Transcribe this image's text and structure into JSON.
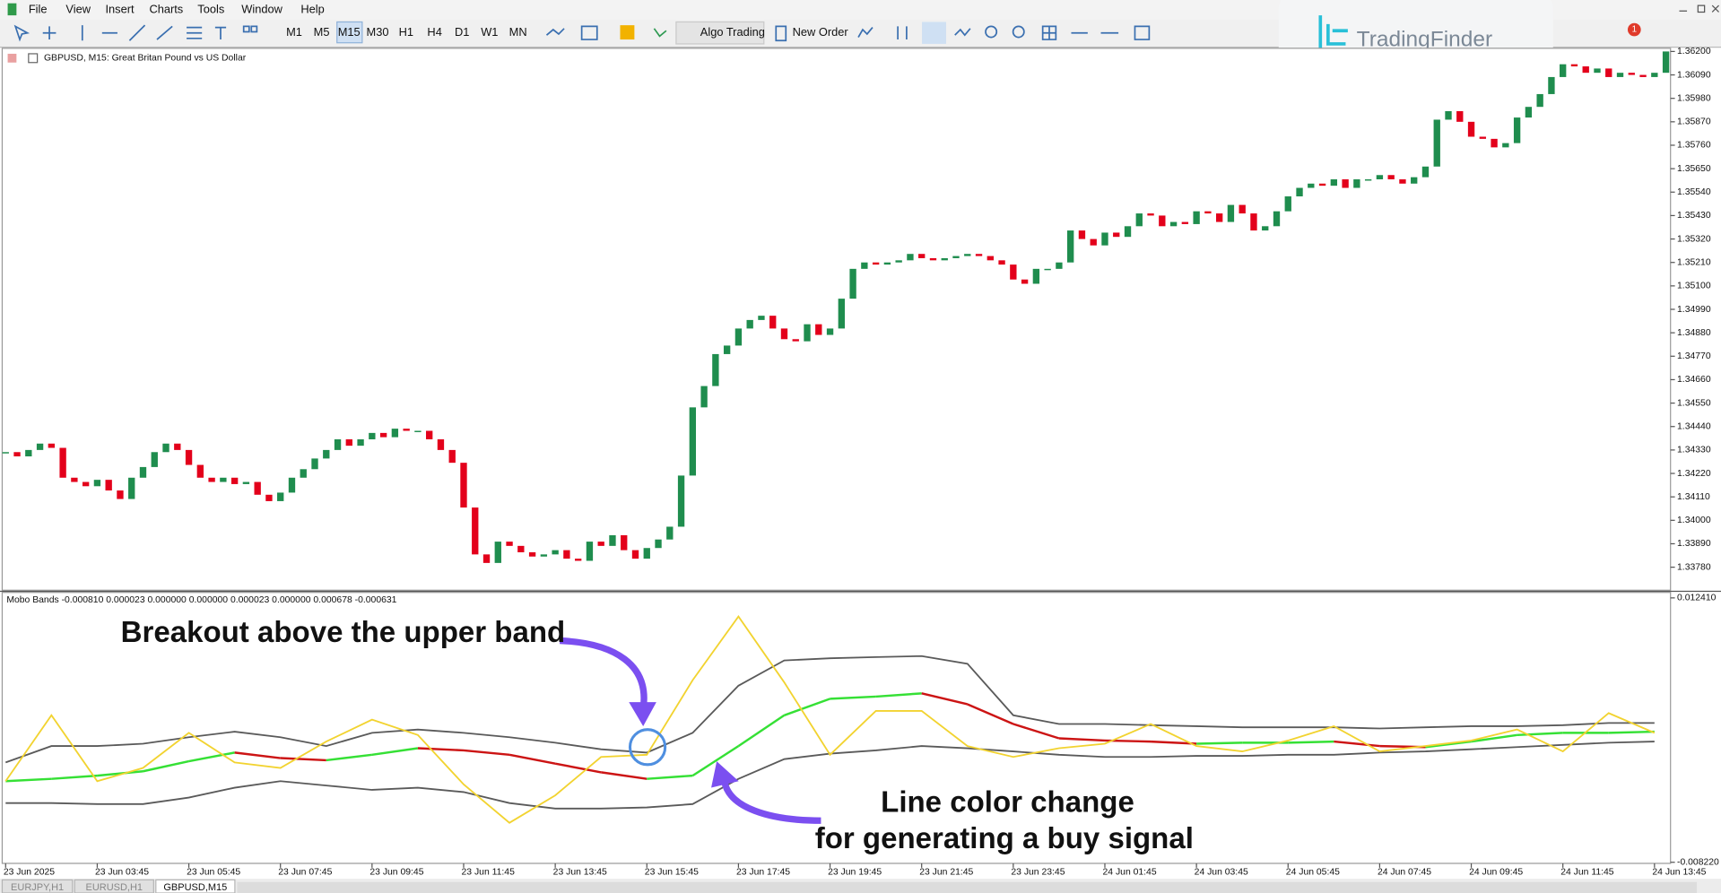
{
  "menu": [
    "File",
    "View",
    "Insert",
    "Charts",
    "Tools",
    "Window",
    "Help"
  ],
  "toolbar": {
    "timeframes": [
      "M1",
      "M5",
      "M15",
      "M30",
      "H1",
      "H4",
      "D1",
      "W1",
      "MN"
    ],
    "buttons": [
      "Algo Trading",
      "New Order"
    ]
  },
  "logo": {
    "text": "TradingFinder",
    "badge": "1"
  },
  "annotations": [
    "Breakout above the upper band",
    "Line color change",
    "for generating a buy signal"
  ],
  "tabs": [
    "EURJPY,H1",
    "EURUSD,H1",
    "GBPUSD,M15"
  ],
  "chart_data": [
    {
      "type": "candlestick",
      "title": "GBPUSD, M15:  Great Britan Pound vs US Dollar",
      "up_color": "#1f8d4e",
      "down_color": "#e3001b",
      "values": [
        1.3432,
        1.343,
        1.3433,
        1.3436,
        1.3434,
        1.342,
        1.3418,
        1.3416,
        1.3419,
        1.3414,
        1.341,
        1.342,
        1.3425,
        1.3432,
        1.3436,
        1.3433,
        1.3426,
        1.342,
        1.3418,
        1.342,
        1.3417,
        1.3418,
        1.3412,
        1.3409,
        1.3413,
        1.342,
        1.3424,
        1.3429,
        1.3433,
        1.3438,
        1.3435,
        1.3438,
        1.3441,
        1.3439,
        1.3443,
        1.3442,
        1.3442,
        1.3438,
        1.3433,
        1.3427,
        1.3406,
        1.3384,
        1.338,
        1.339,
        1.3388,
        1.3385,
        1.3383,
        1.3384,
        1.3386,
        1.3382,
        1.3381,
        1.339,
        1.3388,
        1.3393,
        1.3386,
        1.3382,
        1.3387,
        1.3391,
        1.3397,
        1.3421,
        1.3453,
        1.3463,
        1.3478,
        1.3482,
        1.349,
        1.3494,
        1.3496,
        1.349,
        1.3485,
        1.3484,
        1.3492,
        1.3487,
        1.349,
        1.3504,
        1.3518,
        1.3521,
        1.352,
        1.3521,
        1.3522,
        1.3525,
        1.3523,
        1.3522,
        1.3523,
        1.3524,
        1.3525,
        1.3524,
        1.3522,
        1.352,
        1.3513,
        1.3511,
        1.3518,
        1.3518,
        1.3521,
        1.3536,
        1.3532,
        1.3529,
        1.3535,
        1.3533,
        1.3538,
        1.3544,
        1.3543,
        1.3538,
        1.354,
        1.3539,
        1.3545,
        1.3544,
        1.354,
        1.3548,
        1.3544,
        1.3536,
        1.3538,
        1.3545,
        1.3552,
        1.3556,
        1.3558,
        1.3557,
        1.356,
        1.3556,
        1.356,
        1.356,
        1.3562,
        1.356,
        1.3558,
        1.3561,
        1.3566,
        1.3588,
        1.3592,
        1.3587,
        1.358,
        1.3579,
        1.3575,
        1.3577,
        1.3589,
        1.3594,
        1.36,
        1.3608,
        1.3614,
        1.3613,
        1.361,
        1.3612,
        1.3608,
        1.361,
        1.3609,
        1.3608,
        1.361,
        1.362
      ],
      "ylim": [
        1.33672,
        1.36215
      ],
      "yticks": [
        {
          "value": 1.362,
          "label": "1.36200"
        },
        {
          "value": 1.3609,
          "label": "1.36090"
        },
        {
          "value": 1.3598,
          "label": "1.35980"
        },
        {
          "value": 1.3587,
          "label": "1.35870"
        },
        {
          "value": 1.3576,
          "label": "1.35760"
        },
        {
          "value": 1.3565,
          "label": "1.35650"
        },
        {
          "value": 1.3554,
          "label": "1.35540"
        },
        {
          "value": 1.3543,
          "label": "1.35430"
        },
        {
          "value": 1.3532,
          "label": "1.35320"
        },
        {
          "value": 1.3521,
          "label": "1.35210"
        },
        {
          "value": 1.351,
          "label": "1.35100"
        },
        {
          "value": 1.3499,
          "label": "1.34990"
        },
        {
          "value": 1.3488,
          "label": "1.34880"
        },
        {
          "value": 1.3477,
          "label": "1.34770"
        },
        {
          "value": 1.3466,
          "label": "1.34660"
        },
        {
          "value": 1.3455,
          "label": "1.34550"
        },
        {
          "value": 1.3444,
          "label": "1.34440"
        },
        {
          "value": 1.3433,
          "label": "1.34330"
        },
        {
          "value": 1.3422,
          "label": "1.34220"
        },
        {
          "value": 1.3411,
          "label": "1.34110"
        },
        {
          "value": 1.34,
          "label": "1.34000"
        },
        {
          "value": 1.3389,
          "label": "1.33890"
        },
        {
          "value": 1.3378,
          "label": "1.33780"
        }
      ]
    },
    {
      "type": "line",
      "title": "Mobo Bands -0.000810 0.000023 0.000000 0.000000 0.000023 0.000000 0.000678 -0.000631",
      "x": [
        0,
        4,
        8,
        12,
        16,
        20,
        24,
        28,
        32,
        36,
        40,
        44,
        48,
        52,
        56,
        60,
        64,
        68,
        72,
        76,
        80,
        84,
        88,
        92,
        96,
        100,
        104,
        108,
        112,
        116,
        120,
        124,
        128,
        132,
        136,
        140,
        144
      ],
      "xlim": [
        -0.3,
        145.4
      ],
      "xticks": [
        {
          "value": 0,
          "label": "23 Jun 2025"
        },
        {
          "value": 8,
          "label": "23 Jun 03:45"
        },
        {
          "value": 16,
          "label": "23 Jun 05:45"
        },
        {
          "value": 24,
          "label": "23 Jun 07:45"
        },
        {
          "value": 32,
          "label": "23 Jun 09:45"
        },
        {
          "value": 40,
          "label": "23 Jun 11:45"
        },
        {
          "value": 48,
          "label": "23 Jun 13:45"
        },
        {
          "value": 56,
          "label": "23 Jun 15:45"
        },
        {
          "value": 64,
          "label": "23 Jun 17:45"
        },
        {
          "value": 72,
          "label": "23 Jun 19:45"
        },
        {
          "value": 80,
          "label": "23 Jun 21:45"
        },
        {
          "value": 88,
          "label": "23 Jun 23:45"
        },
        {
          "value": 96,
          "label": "24 Jun 01:45"
        },
        {
          "value": 104,
          "label": "24 Jun 03:45"
        },
        {
          "value": 112,
          "label": "24 Jun 05:45"
        },
        {
          "value": 120,
          "label": "24 Jun 07:45"
        },
        {
          "value": 128,
          "label": "24 Jun 09:45"
        },
        {
          "value": 136,
          "label": "24 Jun 11:45"
        },
        {
          "value": 144,
          "label": "24 Jun 13:45"
        }
      ],
      "ylim": [
        -0.00822,
        0.01241
      ],
      "yticks": [
        {
          "value": 0.01241,
          "label": "0.012410"
        },
        {
          "value": -0.00822,
          "label": "-0.008220"
        }
      ],
      "series": [
        {
          "color": "#5a5a5a",
          "values": [
            -0.00043,
            0.00085,
            0.00085,
            0.00103,
            0.00154,
            0.00197,
            0.00154,
            0.00085,
            0.00188,
            0.00214,
            0.00188,
            0.00154,
            0.00111,
            0.0006,
            0.00034,
            0.00188,
            0.00556,
            0.00753,
            0.0077,
            0.00779,
            0.00787,
            0.00727,
            0.00325,
            0.00257,
            0.00257,
            0.00248,
            0.0024,
            0.00231,
            0.00231,
            0.00231,
            0.00222,
            0.00231,
            0.0024,
            0.0024,
            0.00248,
            0.00265,
            0.00265
          ]
        },
        {
          "color": "#5a5a5a",
          "values": [
            -0.0036,
            -0.0036,
            -0.00368,
            -0.00368,
            -0.00317,
            -0.0024,
            -0.00189,
            -0.00223,
            -0.00257,
            -0.0024,
            -0.00274,
            -0.0036,
            -0.00403,
            -0.00403,
            -0.00394,
            -0.00368,
            -0.00171,
            -0.00017,
            0.00026,
            0.00051,
            0.00085,
            0.00068,
            0.00043,
            0.00017,
            0,
            0,
            8e-05,
            8e-05,
            0.00017,
            0.00017,
            0.00034,
            0.00043,
            0.0006,
            0.00077,
            0.00094,
            0.00111,
            0.0012
          ]
        },
        {
          "color_up": "#35e035",
          "color_down": "#cc1414",
          "values": [
            -0.00189,
            -0.00171,
            -0.00146,
            -0.00112,
            -0.00034,
            0.00034,
            -9e-05,
            -0.00026,
            0.00017,
            0.00068,
            0.00051,
            0.00017,
            -0.00052,
            -0.0012,
            -0.00171,
            -0.00146,
            0.00085,
            0.00325,
            0.00454,
            0.00471,
            0.00496,
            0.00411,
            0.00257,
            0.00145,
            0.00128,
            0.0012,
            0.00103,
            0.00111,
            0.00111,
            0.0012,
            0.00085,
            0.00077,
            0.0012,
            0.00171,
            0.00188,
            0.00188,
            0.00197
          ]
        },
        {
          "color": "#f2d330",
          "values": [
            -0.00189,
            0.00325,
            -0.00189,
            -0.00086,
            0.00188,
            -0.00043,
            -0.00086,
            0.0012,
            0.00291,
            0.00171,
            -0.00214,
            -0.00514,
            -0.003,
            0,
            0.00017,
            0.00599,
            0.01096,
            0.00582,
            0.00017,
            0.00359,
            0.00359,
            0.00085,
            0,
            0.00068,
            0.00103,
            0.00257,
            0.00085,
            0.00043,
            0.00128,
            0.0024,
            0.00043,
            0.00085,
            0.00128,
            0.00214,
            0.00043,
            0.00342,
            0.00188
          ]
        }
      ]
    }
  ]
}
